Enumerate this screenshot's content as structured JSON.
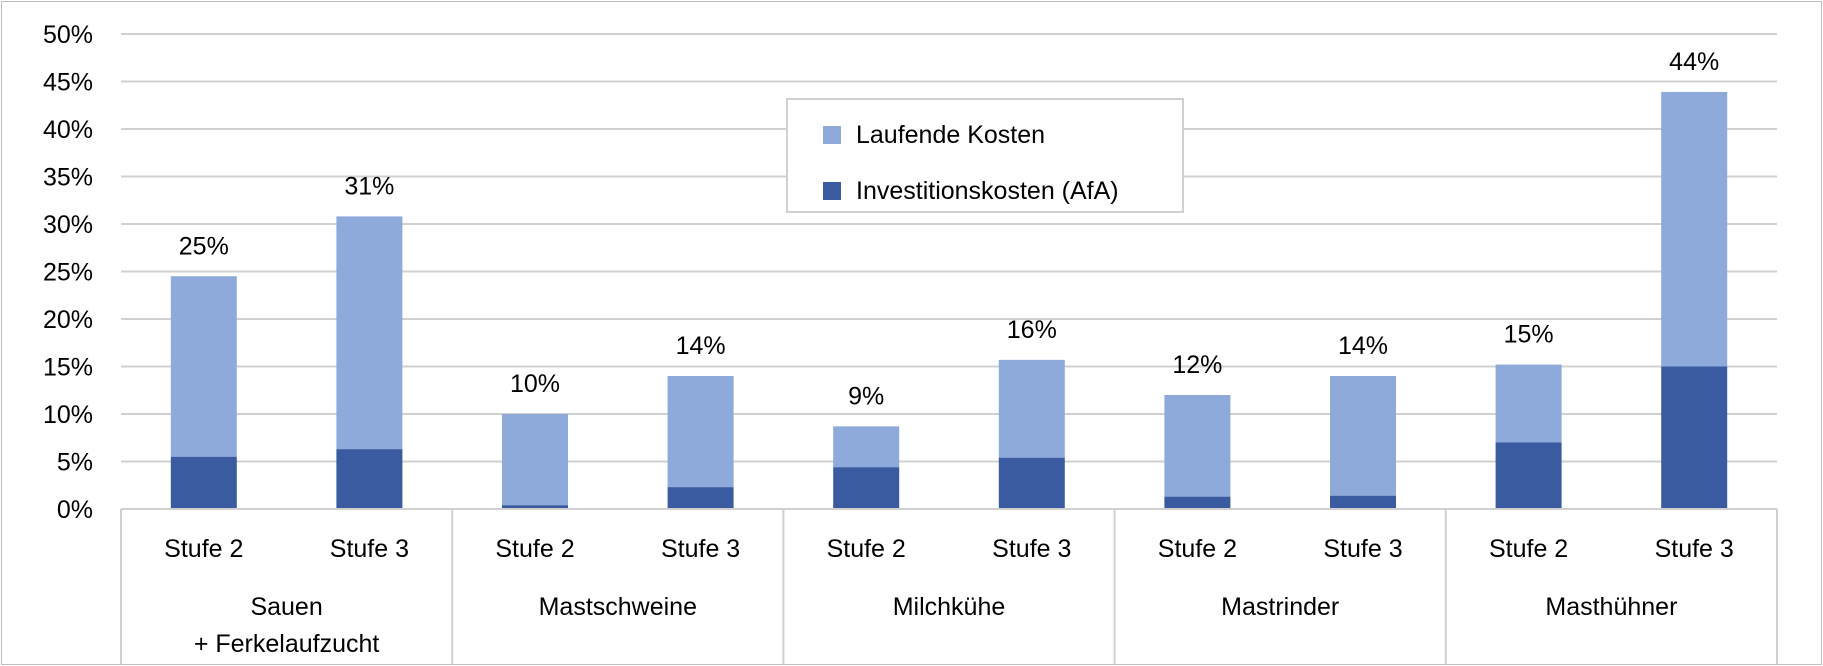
{
  "chart_data": {
    "type": "bar",
    "stacked": true,
    "title": "",
    "xlabel": "",
    "ylabel": "",
    "ylim": [
      0,
      50
    ],
    "y_ticks": [
      "0%",
      "5%",
      "10%",
      "15%",
      "20%",
      "25%",
      "30%",
      "35%",
      "40%",
      "45%",
      "50%"
    ],
    "y_unit": "%",
    "grid": true,
    "legend_position": "top-center",
    "groups": [
      {
        "label_lines": [
          "Sauen",
          "+ Ferkelaufzucht"
        ],
        "categories": [
          "Stufe 2",
          "Stufe 3"
        ]
      },
      {
        "label_lines": [
          "Mastschweine"
        ],
        "categories": [
          "Stufe 2",
          "Stufe 3"
        ]
      },
      {
        "label_lines": [
          "Milchkühe"
        ],
        "categories": [
          "Stufe 2",
          "Stufe 3"
        ]
      },
      {
        "label_lines": [
          "Mastrinder"
        ],
        "categories": [
          "Stufe 2",
          "Stufe 3"
        ]
      },
      {
        "label_lines": [
          "Masthühner"
        ],
        "categories": [
          "Stufe 2",
          "Stufe 3"
        ]
      }
    ],
    "series": [
      {
        "name": "Investitionskosten (AfA)",
        "color": "#3a5ba0",
        "values": [
          5.5,
          6.3,
          0.4,
          2.3,
          4.4,
          5.4,
          1.3,
          1.4,
          7.0,
          15.0
        ]
      },
      {
        "name": "Laufende Kosten",
        "color": "#8eaadb",
        "values": [
          19.0,
          24.5,
          9.6,
          11.7,
          4.3,
          10.3,
          10.7,
          12.6,
          8.2,
          28.9
        ]
      }
    ],
    "legend_order": [
      "Laufende Kosten",
      "Investitionskosten (AfA)"
    ],
    "data_labels": [
      "25%",
      "31%",
      "10%",
      "14%",
      "9%",
      "16%",
      "12%",
      "14%",
      "15%",
      "44%"
    ]
  }
}
